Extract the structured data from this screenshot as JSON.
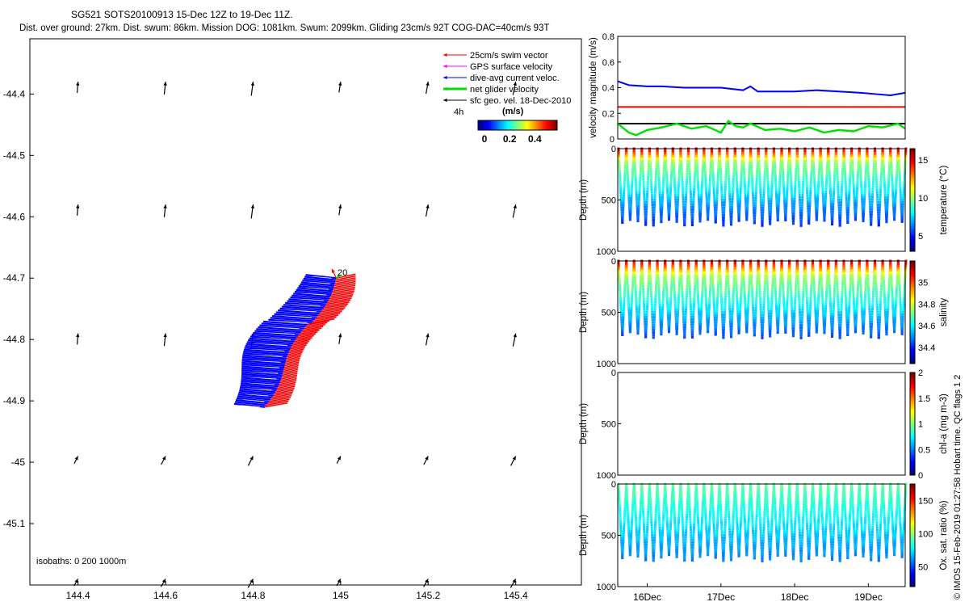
{
  "header": {
    "title": "SG521 SOTS20100913 15-Dec 12Z to 19-Dec 11Z.",
    "subtitle": "Dist. over ground: 27km. Dist. swum: 86km. Mission DOG: 1081km. Swum: 2099km. Gliding 23cm/s 92T COG-DAC=40cm/s 93T"
  },
  "legend": {
    "items": [
      {
        "label": "25cm/s swim vector",
        "color": "#ff0000"
      },
      {
        "label": "GPS surface velocity",
        "color": "#ff00ff"
      },
      {
        "label": "dive-avg current veloc.",
        "color": "#0000ff"
      },
      {
        "label": "net glider velocity",
        "color": "#00e000"
      },
      {
        "label": "sfc geo. vel. 18-Dec-2010",
        "color": "#000000"
      }
    ],
    "time_label": "4h",
    "colorbar_label": "(m/s)",
    "colorbar_ticks": [
      "0",
      "0.2",
      "0.4"
    ]
  },
  "annotations": {
    "isobaths": "isobaths: 0   200  1000m",
    "marker_20": "20",
    "footer": "© IMOS 15-Feb-2019 01:27:58 Hobart time. QC flags 1  2"
  },
  "chart_data": [
    {
      "type": "scatter",
      "name": "map",
      "x_ticks": [
        "144.4",
        "144.6",
        "144.8",
        "145",
        "145.2",
        "145.4"
      ],
      "y_ticks": [
        "-44.4",
        "-44.5",
        "-44.6",
        "-44.7",
        "-44.8",
        "-44.9",
        "-45",
        "-45.1"
      ],
      "xlim": [
        144.29,
        145.55
      ],
      "ylim": [
        -45.2,
        -44.31
      ],
      "geo_vectors": {
        "lons": [
          144.4,
          144.6,
          144.8,
          145.0,
          145.2,
          145.4
        ],
        "lats": [
          -44.38,
          -44.58,
          -44.79,
          -44.99,
          -45.19
        ]
      },
      "track": {
        "lon_start": 144.99,
        "lat_start": -44.7,
        "lon_end": 144.83,
        "lat_end": -44.91
      }
    },
    {
      "type": "line",
      "name": "velocity",
      "ylabel": "velocity magnitude (m/s)",
      "y_ticks": [
        "0",
        "0.2",
        "0.4",
        "0.6",
        "0.8"
      ],
      "ylim": [
        0,
        0.8
      ],
      "xlim": [
        15.6,
        19.5
      ],
      "series": [
        {
          "name": "dive-avg current",
          "color": "#0000ff",
          "x": [
            15.6,
            15.75,
            16.0,
            16.2,
            16.5,
            16.8,
            17.0,
            17.3,
            17.4,
            17.5,
            17.8,
            18.0,
            18.3,
            18.6,
            18.9,
            19.1,
            19.3,
            19.5
          ],
          "y": [
            0.45,
            0.42,
            0.41,
            0.41,
            0.4,
            0.4,
            0.4,
            0.38,
            0.41,
            0.37,
            0.37,
            0.37,
            0.38,
            0.37,
            0.36,
            0.35,
            0.34,
            0.36
          ]
        },
        {
          "name": "swim",
          "color": "#ff0000",
          "x": [
            15.6,
            19.5
          ],
          "y": [
            0.25,
            0.25
          ]
        },
        {
          "name": "sfc geo",
          "color": "#000000",
          "x": [
            15.6,
            19.5
          ],
          "y": [
            0.12,
            0.12
          ]
        },
        {
          "name": "net glider",
          "color": "#00e000",
          "x": [
            15.6,
            15.75,
            15.85,
            16.0,
            16.2,
            16.4,
            16.6,
            16.8,
            17.0,
            17.1,
            17.2,
            17.3,
            17.4,
            17.6,
            17.8,
            18.0,
            18.2,
            18.4,
            18.6,
            18.8,
            19.0,
            19.2,
            19.4,
            19.5
          ],
          "y": [
            0.12,
            0.05,
            0.03,
            0.07,
            0.09,
            0.12,
            0.08,
            0.1,
            0.05,
            0.14,
            0.1,
            0.09,
            0.12,
            0.07,
            0.08,
            0.06,
            0.09,
            0.05,
            0.07,
            0.06,
            0.1,
            0.09,
            0.12,
            0.08
          ]
        }
      ]
    },
    {
      "type": "scatter",
      "name": "temperature",
      "ylabel": "Depth (m)",
      "clabel": "temperature (°C)",
      "y_ticks": [
        "0",
        "500",
        "1000"
      ],
      "ylim": [
        1000,
        0
      ],
      "cticks": [
        "5",
        "10",
        "15"
      ],
      "clim": [
        3,
        16.5
      ],
      "profile": {
        "cycles": 37,
        "depth_max": 720,
        "surface_value": 15.5,
        "deep_value": 5.5,
        "thermocline_depth": 130
      }
    },
    {
      "type": "scatter",
      "name": "salinity",
      "ylabel": "Depth (m)",
      "clabel": "salinity",
      "y_ticks": [
        "0",
        "500",
        "1000"
      ],
      "ylim": [
        1000,
        0
      ],
      "cticks": [
        "34.4",
        "34.6",
        "34.8",
        "35"
      ],
      "clim": [
        34.25,
        35.2
      ],
      "profile": {
        "cycles": 37,
        "depth_max": 720,
        "surface_value": 35.12,
        "deep_value": 34.45,
        "thermocline_depth": 150
      }
    },
    {
      "type": "scatter",
      "name": "chl-a",
      "ylabel": "Depth (m)",
      "clabel": "chl-a (mg m-3)",
      "y_ticks": [
        "0",
        "500",
        "1000"
      ],
      "ylim": [
        1000,
        0
      ],
      "cticks": [
        "0",
        "0.5",
        "1",
        "1.5",
        "2"
      ],
      "clim": [
        0,
        2
      ]
    },
    {
      "type": "scatter",
      "name": "oxygen",
      "ylabel": "Depth (m)",
      "clabel": "Ox. sat. ratio (%)",
      "y_ticks": [
        "0",
        "500",
        "1000"
      ],
      "ylim": [
        1000,
        0
      ],
      "cticks": [
        "50",
        "100",
        "150"
      ],
      "clim": [
        20,
        175
      ],
      "x_ticks": [
        "16Dec",
        "17Dec",
        "18Dec",
        "19Dec"
      ],
      "x_tick_values": [
        16,
        17,
        18,
        19
      ],
      "xlim": [
        15.6,
        19.5
      ],
      "profile": {
        "cycles": 37,
        "depth_max": 720,
        "surface_value": 93,
        "deep_value": 60,
        "thermocline_depth": 400
      }
    }
  ]
}
